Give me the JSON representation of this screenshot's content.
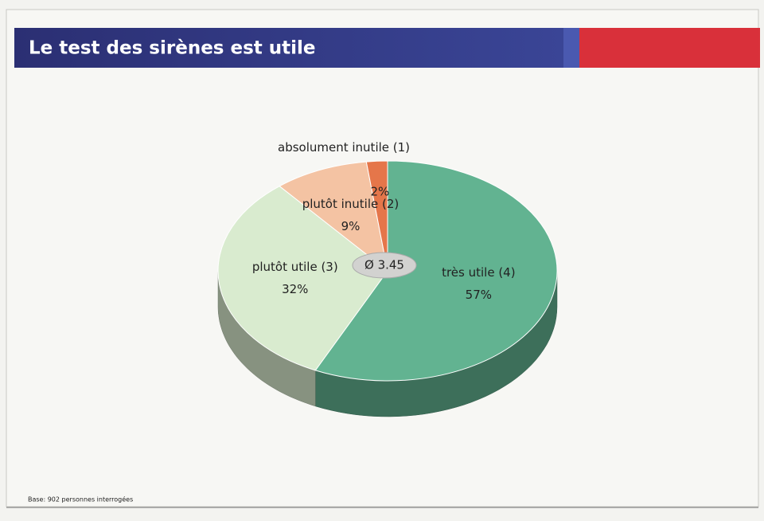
{
  "chart_data": {
    "type": "pie3d",
    "title": "Le test des sirènes est utile",
    "categories": [
      "très utile (4)",
      "plutôt utile (3)",
      "plutôt inutile (2)",
      "absolument inutile (1)"
    ],
    "values": [
      57,
      32,
      9,
      2
    ],
    "value_labels": [
      "57%",
      "32%",
      "9%",
      "2%"
    ],
    "colors": [
      "#62b391",
      "#d9ebcf",
      "#f4c3a3",
      "#e5764a"
    ],
    "annotation": "Ø 3.45",
    "footnote": "Base: 902 personnes interrogées"
  }
}
